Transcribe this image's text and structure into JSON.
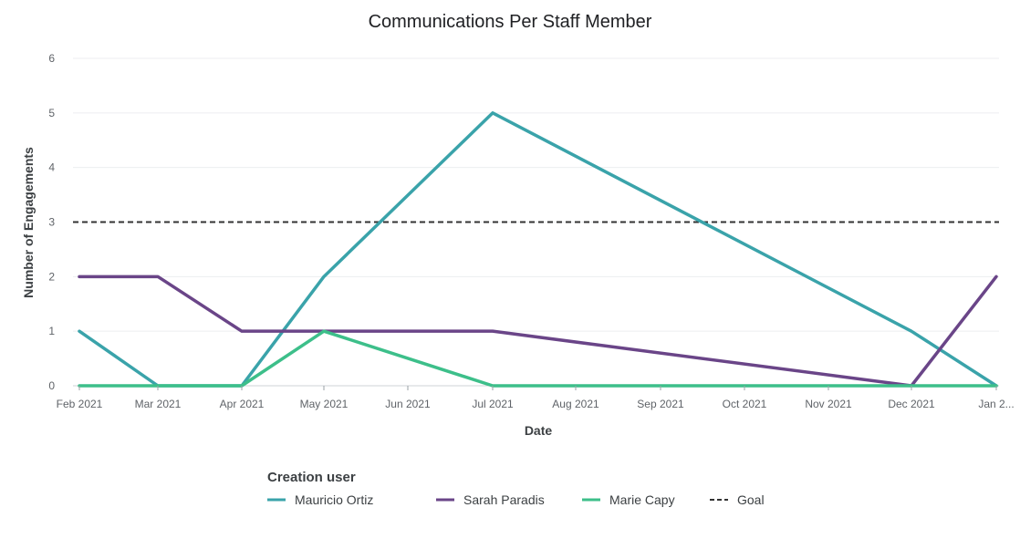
{
  "chart_data": {
    "type": "line",
    "title": "Communications Per Staff Member",
    "xlabel": "Date",
    "ylabel": "Number of Engagements",
    "ylim": [
      0,
      6
    ],
    "yticks": [
      0,
      1,
      2,
      3,
      4,
      5,
      6
    ],
    "x_ticks": [
      "Feb 2021",
      "Mar 2021",
      "Apr 2021",
      "May 2021",
      "Jun 2021",
      "Jul 2021",
      "Aug 2021",
      "Sep 2021",
      "Oct 2021",
      "Nov 2021",
      "Dec 2021",
      "Jan 2..."
    ],
    "grid": true,
    "legend": {
      "title": "Creation user",
      "position": "bottom"
    },
    "series": [
      {
        "name": "Mauricio Ortiz",
        "color": "#3aa3aa",
        "points": [
          {
            "x": "Feb 2021",
            "y": 1
          },
          {
            "x": "Mar 2021",
            "y": 0
          },
          {
            "x": "Apr 2021",
            "y": 0
          },
          {
            "x": "May 2021",
            "y": 2
          },
          {
            "x": "Jul 2021",
            "y": 5
          },
          {
            "x": "Dec 2021",
            "y": 1
          },
          {
            "x": "Jan 2...",
            "y": 0
          }
        ]
      },
      {
        "name": "Sarah Paradis",
        "color": "#6a4588",
        "points": [
          {
            "x": "Feb 2021",
            "y": 2
          },
          {
            "x": "Mar 2021",
            "y": 2
          },
          {
            "x": "Apr 2021",
            "y": 1
          },
          {
            "x": "Jul 2021",
            "y": 1
          },
          {
            "x": "Dec 2021",
            "y": 0
          },
          {
            "x": "Jan 2...",
            "y": 2
          }
        ]
      },
      {
        "name": "Marie Capy",
        "color": "#3dbf8a",
        "points": [
          {
            "x": "Feb 2021",
            "y": 0
          },
          {
            "x": "Apr 2021",
            "y": 0
          },
          {
            "x": "May 2021",
            "y": 1
          },
          {
            "x": "Jul 2021",
            "y": 0
          },
          {
            "x": "Jan 2...",
            "y": 0
          }
        ]
      }
    ],
    "reference_lines": [
      {
        "name": "Goal",
        "y": 3,
        "style": "dashed",
        "color": "#333333"
      }
    ]
  }
}
